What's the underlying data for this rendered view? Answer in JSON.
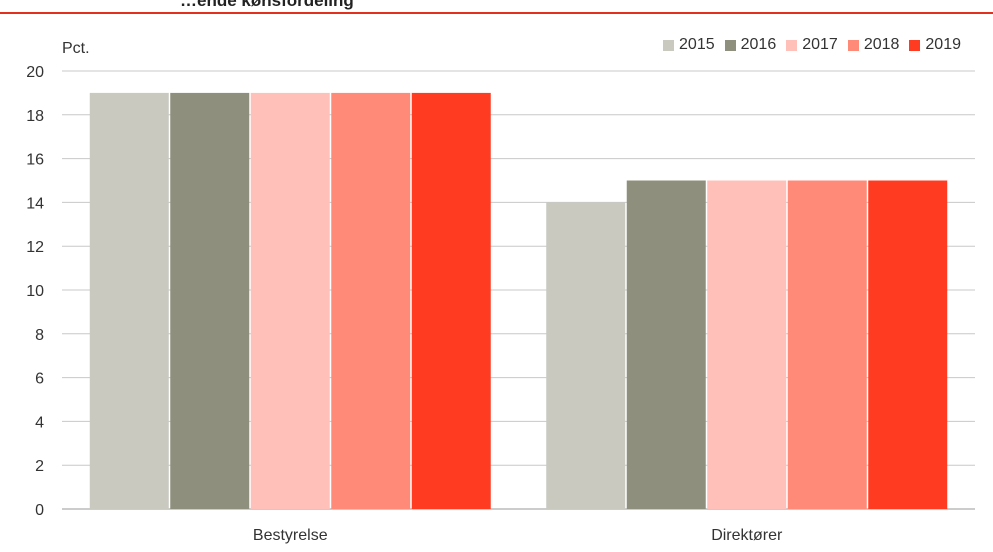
{
  "title": "…ende kønsfordeling",
  "chart_data": {
    "type": "bar",
    "unit_label": "Pct.",
    "categories": [
      "Bestyrelse",
      "Direktører"
    ],
    "series": [
      {
        "name": "2015",
        "values": [
          19,
          14
        ],
        "color": "#c9c9c0"
      },
      {
        "name": "2016",
        "values": [
          19,
          15
        ],
        "color": "#8f8f7e"
      },
      {
        "name": "2017",
        "values": [
          19,
          15
        ],
        "color": "#ffc0ba"
      },
      {
        "name": "2018",
        "values": [
          19,
          15
        ],
        "color": "#ff8a77"
      },
      {
        "name": "2019",
        "values": [
          19,
          15
        ],
        "color": "#ff3b22"
      }
    ],
    "ylim": [
      0,
      20
    ],
    "yticks": [
      0,
      2,
      4,
      6,
      8,
      10,
      12,
      14,
      16,
      18,
      20
    ],
    "grid": true,
    "legend_position": "top-right"
  }
}
